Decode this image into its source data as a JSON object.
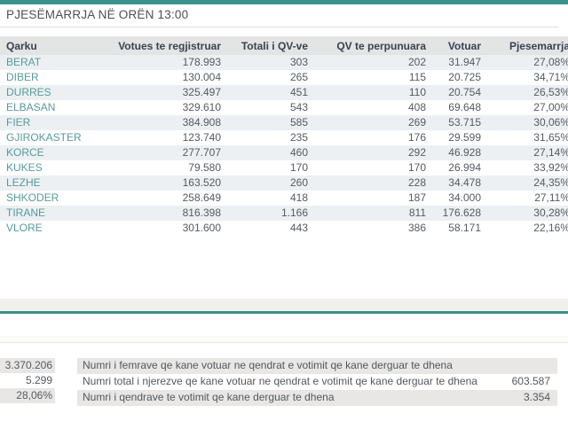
{
  "colors": {
    "accent_teal": "#3B918B",
    "table_header_bg": "#E3E4E4",
    "row_stripe": "#ECF0F2",
    "county_link": "#579A9B",
    "summary_row_bg": "#E8E7E5"
  },
  "header": {
    "title": "PJESËMARRJA NË ORËN 13:00"
  },
  "turnout_table": {
    "columns": [
      "Qarku",
      "Votues te regjistruar",
      "Totali i QV-ve",
      "QV te perpunuara",
      "Votuar",
      "Pjesemarrja"
    ],
    "rows": [
      [
        "BERAT",
        "178.993",
        "303",
        "202",
        "31.947",
        "27,08%"
      ],
      [
        "DIBER",
        "130.004",
        "265",
        "115",
        "20.725",
        "34,71%"
      ],
      [
        "DURRES",
        "325.497",
        "451",
        "110",
        "20.754",
        "26,53%"
      ],
      [
        "ELBASAN",
        "329.610",
        "543",
        "408",
        "69.648",
        "27,00%"
      ],
      [
        "FIER",
        "384.908",
        "585",
        "269",
        "53.715",
        "30,06%"
      ],
      [
        "GJIROKASTER",
        "123.740",
        "235",
        "176",
        "29.599",
        "31,65%"
      ],
      [
        "KORCE",
        "277.707",
        "460",
        "292",
        "46.928",
        "27,14%"
      ],
      [
        "KUKES",
        "79.580",
        "170",
        "170",
        "26.994",
        "33,92%"
      ],
      [
        "LEZHE",
        "163.520",
        "260",
        "228",
        "34.478",
        "24,35%"
      ],
      [
        "SHKODER",
        "258.649",
        "418",
        "187",
        "34.000",
        "27,11%"
      ],
      [
        "TIRANE",
        "816.398",
        "1.166",
        "811",
        "176.628",
        "30,28%"
      ],
      [
        "VLORE",
        "301.600",
        "443",
        "386",
        "58.171",
        "22,16%"
      ]
    ]
  },
  "summary_totals": {
    "values": [
      "3.370.206",
      "5.299",
      "28,06%"
    ]
  },
  "summary_details": {
    "rows": [
      {
        "label": "Numri i femrave qe kane votuar ne qendrat e votimit qe kane derguar te dhena",
        "value": ""
      },
      {
        "label": "Numri total i njerezve qe kane votuar ne qendrat e votimit qe kane derguar te dhena",
        "value": "603.587"
      },
      {
        "label": "Numri i qendrave te votimit qe kane derguar te dhena",
        "value": "3.354"
      }
    ]
  }
}
